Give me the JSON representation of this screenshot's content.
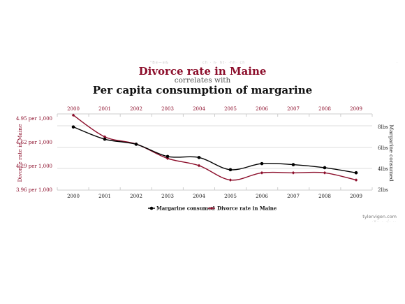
{
  "chart_data": {
    "type": "line",
    "title": "Divorce rate in Maine",
    "subtitle": "correlates with",
    "title2": "Per capita consumption of margarine",
    "x": [
      "2000",
      "2001",
      "2002",
      "2003",
      "2004",
      "2005",
      "2006",
      "2007",
      "2008",
      "2009"
    ],
    "left_axis": {
      "label": "Divorce rate in Maine",
      "ticks": [
        "4.95 per 1,000",
        "4.62 per 1,000",
        "4.29 per 1,000",
        "3.96 per 1,000"
      ],
      "range": [
        3.96,
        4.95
      ]
    },
    "right_axis": {
      "label": "Margarine consumed",
      "ticks": [
        "8lbs",
        "6lbs",
        "4lbs",
        "2lbs"
      ],
      "range": [
        2,
        9
      ]
    },
    "series": [
      {
        "name": "Margarine consumed",
        "axis": "right",
        "color": "#000000",
        "values": [
          8.2,
          7.0,
          6.5,
          5.3,
          5.2,
          4.0,
          4.6,
          4.5,
          4.2,
          3.7
        ]
      },
      {
        "name": "Divorce rate in Maine",
        "axis": "left",
        "color": "#8c0e2b",
        "values": [
          5.0,
          4.7,
          4.6,
          4.4,
          4.3,
          4.1,
          4.2,
          4.2,
          4.2,
          4.1
        ]
      }
    ],
    "legend_position": "bottom-center",
    "grid": true
  },
  "credit": "tylervigen.com",
  "faint": {
    "top1": "\"Be—e&",
    "top2": "ch · n· ht· ·hh· ch",
    "top3": "·",
    "credit_sub": "·v·· · ·/·  ··"
  }
}
